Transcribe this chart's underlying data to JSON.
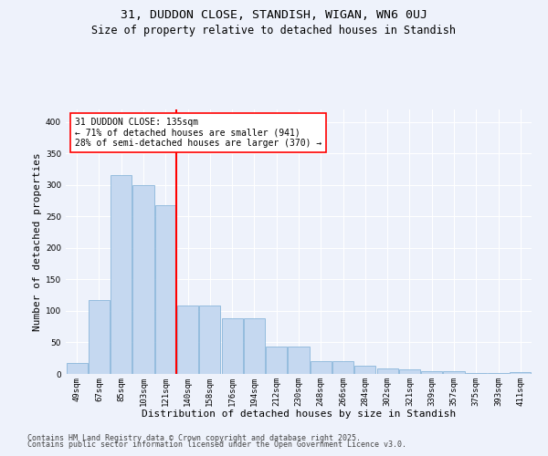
{
  "title1": "31, DUDDON CLOSE, STANDISH, WIGAN, WN6 0UJ",
  "title2": "Size of property relative to detached houses in Standish",
  "xlabel": "Distribution of detached houses by size in Standish",
  "ylabel": "Number of detached properties",
  "categories": [
    "49sqm",
    "67sqm",
    "85sqm",
    "103sqm",
    "121sqm",
    "140sqm",
    "158sqm",
    "176sqm",
    "194sqm",
    "212sqm",
    "230sqm",
    "248sqm",
    "266sqm",
    "284sqm",
    "302sqm",
    "321sqm",
    "339sqm",
    "357sqm",
    "375sqm",
    "393sqm",
    "411sqm"
  ],
  "values": [
    18,
    118,
    315,
    300,
    268,
    109,
    109,
    88,
    88,
    43,
    43,
    20,
    20,
    13,
    8,
    7,
    5,
    4,
    2,
    1,
    3
  ],
  "bar_color": "#c5d8f0",
  "bar_edge_color": "#7aadd4",
  "vline_color": "red",
  "vline_pos": 4.5,
  "annotation_text": "31 DUDDON CLOSE: 135sqm\n← 71% of detached houses are smaller (941)\n28% of semi-detached houses are larger (370) →",
  "annotation_box_color": "white",
  "annotation_box_edge": "red",
  "ylim": [
    0,
    420
  ],
  "yticks": [
    0,
    50,
    100,
    150,
    200,
    250,
    300,
    350,
    400
  ],
  "background_color": "#eef2fb",
  "grid_color": "white",
  "footer1": "Contains HM Land Registry data © Crown copyright and database right 2025.",
  "footer2": "Contains public sector information licensed under the Open Government Licence v3.0.",
  "title_fontsize": 9.5,
  "subtitle_fontsize": 8.5,
  "axis_label_fontsize": 8,
  "tick_fontsize": 6.5,
  "footer_fontsize": 6,
  "annotation_fontsize": 7
}
